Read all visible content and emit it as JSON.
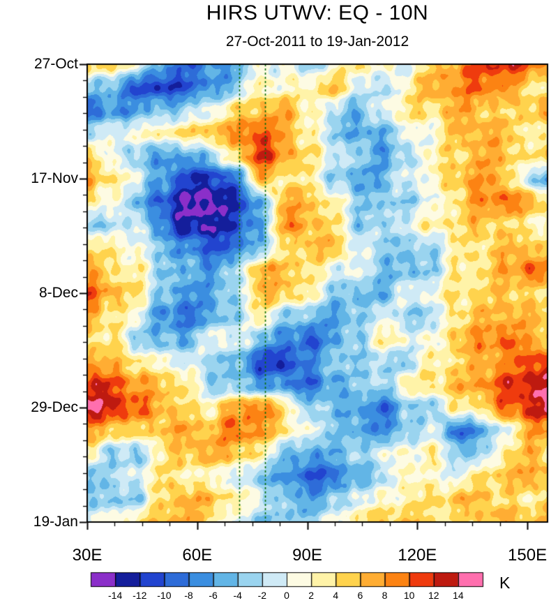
{
  "chart_data": {
    "type": "heatmap",
    "subtype": "hovmoller_time_longitude",
    "title": "HIRS UTWV: EQ - 10N",
    "subtitle": "27-Oct-2011 to 19-Jan-2012",
    "x_axis": {
      "unit": "degrees east longitude",
      "range": [
        30,
        155.5
      ],
      "major_ticks": [
        {
          "value": 30,
          "label": "30E"
        },
        {
          "value": 60,
          "label": "60E"
        },
        {
          "value": 90,
          "label": "90E"
        },
        {
          "value": 120,
          "label": "120E"
        },
        {
          "value": 150,
          "label": "150E"
        }
      ],
      "minor_tick_step": 7.5
    },
    "y_axis": {
      "unit": "days since 27-Oct-2011",
      "direction": "increases_downward",
      "range": [
        0,
        84
      ],
      "major_ticks": [
        {
          "value": 0,
          "label": "27-Oct"
        },
        {
          "value": 21,
          "label": "17-Nov"
        },
        {
          "value": 42,
          "label": "8-Dec"
        },
        {
          "value": 63,
          "label": "29-Dec"
        },
        {
          "value": 84,
          "label": "19-Jan"
        }
      ],
      "minor_tick_step": 3
    },
    "colorbar": {
      "unit": "K",
      "boundaries": [
        -14,
        -12,
        -10,
        -8,
        -6,
        -4,
        -2,
        0,
        2,
        4,
        6,
        8,
        10,
        12,
        14
      ],
      "colors": [
        "#8B2FC9",
        "#141E9B",
        "#2244CF",
        "#2E6CD8",
        "#3B8EE0",
        "#62B5E6",
        "#9AD4EF",
        "#CFEAF6",
        "#FDFBE3",
        "#FFF3A8",
        "#FFD34D",
        "#FFAD33",
        "#FC8313",
        "#EF3B0E",
        "#BE1A10",
        "#FF6FAE"
      ]
    },
    "reference_lines": {
      "color": "#0B6E0B",
      "style": "dashed",
      "x_values": [
        71.5,
        78.5
      ]
    },
    "grid": {
      "lon": [
        30.0,
        36.7,
        43.4,
        50.1,
        56.8,
        63.6,
        70.3,
        77.0,
        83.7,
        90.4,
        97.1,
        103.8,
        110.5,
        117.2,
        123.9,
        130.7,
        137.4,
        144.1,
        150.8,
        157.5
      ],
      "day": [
        0,
        4.2,
        8.4,
        12.6,
        16.8,
        21,
        25.2,
        29.4,
        33.6,
        37.8,
        42,
        46.2,
        50.4,
        54.6,
        58.8,
        63,
        67.2,
        71.4,
        75.6,
        79.8,
        84
      ],
      "values_K": [
        [
          6,
          4,
          1,
          -6,
          -9,
          -7,
          -6,
          0,
          1,
          -3,
          1,
          4,
          1,
          0,
          5,
          8,
          11,
          12,
          10,
          7
        ],
        [
          -3,
          -5,
          -10,
          -12,
          -10,
          -7,
          -4,
          3,
          1,
          3,
          6,
          0,
          -3,
          3,
          7,
          8,
          10,
          8,
          4,
          3
        ],
        [
          -9,
          -7,
          -6,
          -4,
          -3,
          0,
          4,
          6,
          7,
          3,
          -2,
          -5,
          0,
          4,
          4,
          7,
          6,
          4,
          6,
          7
        ],
        [
          -3,
          0,
          1,
          3,
          4,
          6,
          8,
          11,
          7,
          3,
          -3,
          -6,
          -5,
          0,
          1,
          6,
          7,
          6,
          3,
          1
        ],
        [
          4,
          1,
          -4,
          -6,
          -6,
          -3,
          4,
          12,
          8,
          4,
          0,
          -3,
          -6,
          -3,
          3,
          4,
          7,
          6,
          3,
          6
        ],
        [
          7,
          4,
          0,
          -6,
          -11,
          -12,
          -9,
          6,
          4,
          3,
          -3,
          -6,
          -5,
          0,
          1,
          6,
          8,
          6,
          -3,
          -6
        ],
        [
          4,
          1,
          -4,
          -10,
          -14,
          -15,
          -12,
          -6,
          7,
          6,
          3,
          -3,
          -4,
          -3,
          0,
          4,
          8,
          10,
          7,
          4
        ],
        [
          -3,
          -3,
          0,
          -8,
          -13,
          -14,
          -11,
          -6,
          8,
          7,
          4,
          -3,
          -3,
          0,
          3,
          4,
          6,
          4,
          3,
          1
        ],
        [
          4,
          3,
          1,
          -4,
          -7,
          -10,
          -9,
          -4,
          3,
          6,
          6,
          0,
          -3,
          -4,
          -3,
          3,
          4,
          6,
          6,
          4
        ],
        [
          7,
          4,
          3,
          -3,
          -5,
          -6,
          -3,
          7,
          6,
          4,
          0,
          0,
          -4,
          -5,
          -3,
          3,
          4,
          7,
          10,
          8
        ],
        [
          10,
          7,
          4,
          -3,
          -7,
          -6,
          -3,
          6,
          6,
          3,
          -3,
          -5,
          -5,
          0,
          1,
          4,
          4,
          6,
          4,
          3
        ],
        [
          7,
          4,
          1,
          -7,
          -9,
          -6,
          -3,
          3,
          -3,
          -4,
          -6,
          -4,
          0,
          -3,
          -3,
          4,
          6,
          7,
          6,
          6
        ],
        [
          4,
          4,
          -3,
          -5,
          -5,
          0,
          1,
          -4,
          -7,
          -10,
          -6,
          -3,
          3,
          1,
          0,
          6,
          8,
          10,
          7,
          6
        ],
        [
          8,
          6,
          4,
          1,
          0,
          -3,
          -4,
          -11,
          -12,
          -7,
          -4,
          -3,
          -3,
          -3,
          3,
          4,
          7,
          8,
          11,
          12
        ],
        [
          12,
          11,
          8,
          6,
          4,
          -3,
          -4,
          -6,
          -7,
          -9,
          -6,
          -3,
          -3,
          3,
          4,
          6,
          8,
          11,
          13,
          15
        ],
        [
          14,
          13,
          10,
          7,
          4,
          3,
          7,
          10,
          4,
          -3,
          -4,
          -6,
          -9,
          -4,
          -3,
          3,
          4,
          10,
          12,
          15
        ],
        [
          7,
          6,
          4,
          6,
          7,
          6,
          10,
          8,
          4,
          0,
          -3,
          -6,
          -7,
          -4,
          0,
          -9,
          -6,
          0,
          7,
          8
        ],
        [
          3,
          -3,
          -4,
          3,
          6,
          7,
          6,
          3,
          -4,
          -6,
          -5,
          -3,
          0,
          1,
          3,
          -3,
          -4,
          4,
          6,
          4
        ],
        [
          -4,
          -3,
          0,
          4,
          3,
          1,
          0,
          -4,
          -6,
          -10,
          -9,
          -5,
          -3,
          3,
          1,
          0,
          4,
          6,
          7,
          6
        ],
        [
          -3,
          -4,
          -3,
          4,
          7,
          6,
          3,
          0,
          -4,
          -6,
          -4,
          0,
          1,
          3,
          4,
          6,
          6,
          4,
          3,
          6
        ],
        [
          0,
          1,
          4,
          6,
          7,
          4,
          0,
          -3,
          -4,
          -3,
          0,
          4,
          6,
          6,
          4,
          3,
          6,
          7,
          6,
          8
        ]
      ]
    }
  }
}
